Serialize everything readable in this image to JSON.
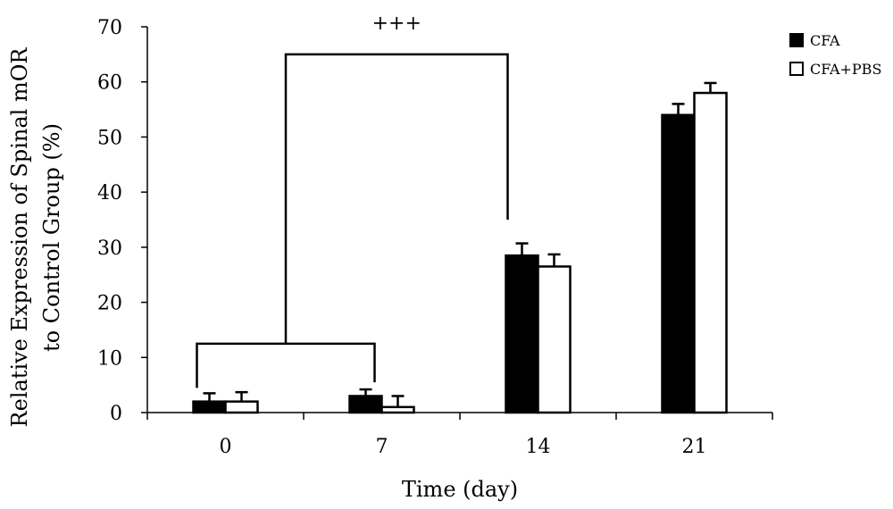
{
  "chart_data": {
    "type": "bar",
    "categories": [
      "0",
      "7",
      "14",
      "21"
    ],
    "series": [
      {
        "name": "CFA",
        "values": [
          2,
          3,
          28.5,
          54
        ],
        "errors": [
          1.5,
          1.2,
          2.2,
          2.0
        ],
        "color": "#000000"
      },
      {
        "name": "CFA+PBS",
        "values": [
          2,
          1,
          26.5,
          58
        ],
        "errors": [
          1.7,
          2.0,
          2.2,
          1.8
        ],
        "color": "#ffffff"
      }
    ],
    "xlabel": "Time (day)",
    "ylabel_lines": [
      "Relative Expression of Spinal  mOR",
      "to Control  Group (%)"
    ],
    "ylim": [
      0,
      70
    ],
    "yticks": [
      0,
      10,
      20,
      30,
      40,
      50,
      60,
      70
    ],
    "legend_position": "top-right",
    "grid": false,
    "annotation": {
      "text": "+++",
      "left_group": [
        "0",
        "7"
      ],
      "right_group": "14",
      "left_bracket_level": 12.5,
      "top_level": 65,
      "right_end_level": 35
    }
  }
}
